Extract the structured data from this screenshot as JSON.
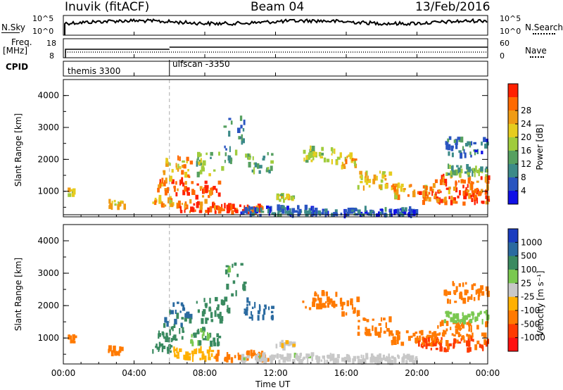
{
  "header": {
    "station": "Inuvik (fitACF)",
    "beam": "Beam 04",
    "date": "13/Feb/2016"
  },
  "noise_panel": {
    "left_label": "N.Sky",
    "left_ticks": [
      "10^5",
      "10^0"
    ],
    "right_label": "N.Search",
    "right_ticks": [
      "10^5",
      "10^0"
    ]
  },
  "freq_panel": {
    "left_label_line1": "Freq.",
    "left_label_line2": "[MHz]",
    "left_ticks": [
      "18",
      "8"
    ],
    "right_label": "Nave",
    "right_ticks": [
      "60",
      "0"
    ]
  },
  "cpid_panel": {
    "label": "CPID",
    "entries": [
      "themis 3300",
      "ulfscan -3350"
    ]
  },
  "chart_data": [
    {
      "type": "heatmap",
      "panel": "power",
      "ylabel": "Slant Range [km]",
      "y_ticks": [
        "1000",
        "2000",
        "3000",
        "4000"
      ],
      "ylim": [
        200,
        4500
      ],
      "xlim_hours": [
        0,
        24
      ],
      "colorbar": {
        "label": "Power [dB]",
        "ticks": [
          "4",
          "8",
          "12",
          "16",
          "20",
          "24",
          "28"
        ],
        "range": [
          0,
          32
        ],
        "colors": [
          "#1010e6",
          "#2a55c0",
          "#3c8a88",
          "#56a060",
          "#a0cc3c",
          "#e6cc1e",
          "#f09b14",
          "#ff6a00",
          "#ff2000"
        ]
      }
    },
    {
      "type": "heatmap",
      "panel": "velocity",
      "ylabel": "Slant Range [km]",
      "y_ticks": [
        "1000",
        "2000",
        "3000",
        "4000"
      ],
      "ylim": [
        200,
        4500
      ],
      "xlim_hours": [
        0,
        24
      ],
      "colorbar": {
        "label": "Velocity  [m s⁻¹]",
        "ticks": [
          "1000",
          "500",
          "100",
          "25",
          "-25",
          "-100",
          "-500",
          "-1000"
        ],
        "range": [
          -1200,
          1200
        ],
        "colors": [
          "#1a3cc0",
          "#2a6aa0",
          "#3a8a60",
          "#7ac850",
          "#c8c8c8",
          "#ffb000",
          "#ff7a00",
          "#ff3a00",
          "#ff1010"
        ]
      }
    }
  ],
  "x_axis": {
    "label": "Time UT",
    "ticks": [
      "00:00",
      "04:00",
      "08:00",
      "12:00",
      "16:00",
      "20:00",
      "00:00"
    ]
  }
}
